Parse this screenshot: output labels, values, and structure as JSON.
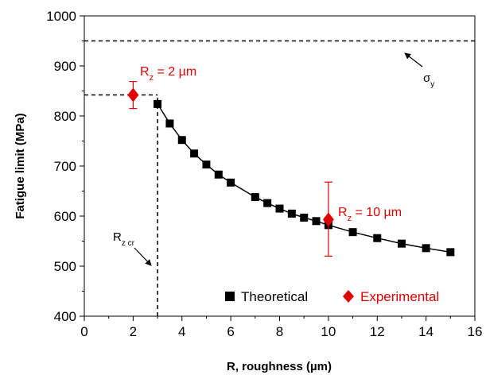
{
  "chart_data": {
    "type": "scatter",
    "title": "",
    "xlabel": "R, roughness (µm)",
    "ylabel": "Fatigue limit (MPa)",
    "xlim": [
      0,
      16
    ],
    "ylim": [
      400,
      1000
    ],
    "x_ticks": [
      "0",
      "2",
      "4",
      "6",
      "8",
      "10",
      "12",
      "14",
      "16"
    ],
    "y_ticks": [
      "400",
      "500",
      "600",
      "700",
      "800",
      "900",
      "1000"
    ],
    "grid": false,
    "legend_position": "bottom-right",
    "series": [
      {
        "name": "Theoretical",
        "color": "#000000",
        "marker": "square",
        "line": true,
        "points": [
          {
            "x": 3.0,
            "y": 824
          },
          {
            "x": 3.5,
            "y": 785
          },
          {
            "x": 4.0,
            "y": 752
          },
          {
            "x": 4.5,
            "y": 725
          },
          {
            "x": 5.0,
            "y": 703
          },
          {
            "x": 5.5,
            "y": 683
          },
          {
            "x": 6.0,
            "y": 667
          },
          {
            "x": 7.0,
            "y": 638
          },
          {
            "x": 7.5,
            "y": 626
          },
          {
            "x": 8.0,
            "y": 615
          },
          {
            "x": 8.5,
            "y": 605
          },
          {
            "x": 9.0,
            "y": 597
          },
          {
            "x": 9.5,
            "y": 590
          },
          {
            "x": 10.0,
            "y": 582
          },
          {
            "x": 11.0,
            "y": 568
          },
          {
            "x": 12.0,
            "y": 556
          },
          {
            "x": 13.0,
            "y": 545
          },
          {
            "x": 14.0,
            "y": 536
          },
          {
            "x": 15.0,
            "y": 528
          }
        ]
      },
      {
        "name": "Experimental",
        "color": "#e00000",
        "marker": "diamond",
        "line": false,
        "points": [
          {
            "x": 2,
            "y": 842,
            "err_low": 815,
            "err_high": 869
          },
          {
            "x": 10,
            "y": 593,
            "err_low": 520,
            "err_high": 668
          }
        ]
      }
    ],
    "reference_lines": [
      {
        "orientation": "horizontal",
        "y": 950,
        "style": "dashed",
        "label": "σy"
      },
      {
        "orientation": "horizontal",
        "y": 842,
        "x_from": 0,
        "x_to": 3,
        "style": "dashed"
      },
      {
        "orientation": "vertical",
        "x": 3,
        "y_from": 400,
        "y_to": 842,
        "style": "dashed",
        "label": "Rz cr"
      }
    ],
    "annotations": [
      {
        "id": "rz2",
        "text_main": "R",
        "text_sub": "z",
        "text_rest": " = 2 µm",
        "color": "#e00000"
      },
      {
        "id": "rz10",
        "text_main": "R",
        "text_sub": "z",
        "text_rest": " = 10 µm",
        "color": "#e00000"
      },
      {
        "id": "sigma",
        "text_main": "σ",
        "text_sub": "y",
        "color": "#000000"
      },
      {
        "id": "rzcr",
        "text_main": "R",
        "text_sub": "z cr",
        "color": "#000000"
      }
    ]
  }
}
